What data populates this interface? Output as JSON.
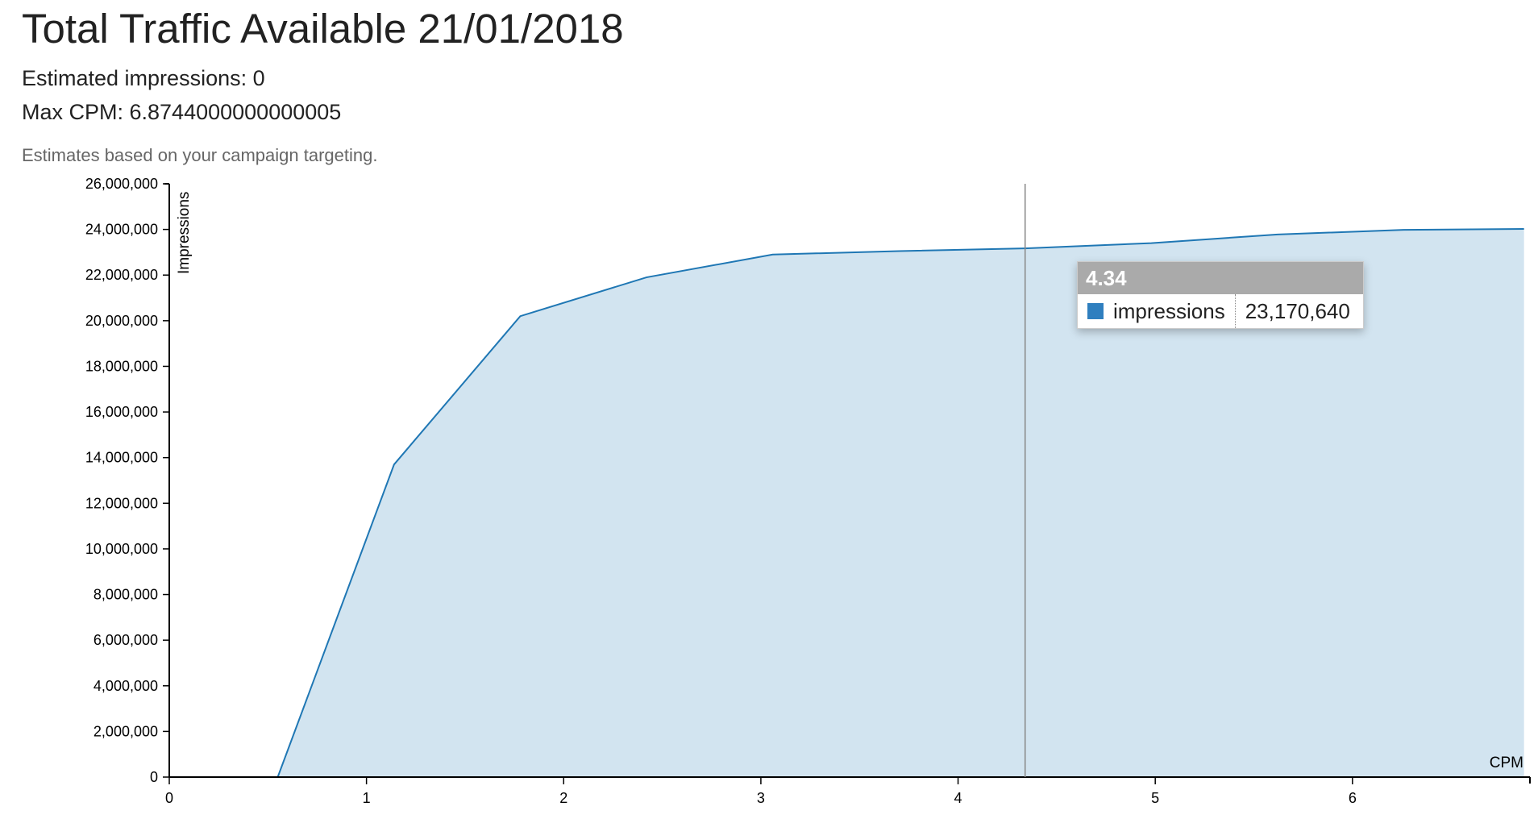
{
  "header": {
    "title": "Total Traffic Available 21/01/2018",
    "estimated_impressions": "Estimated impressions: 0",
    "max_cpm": "Max CPM: 6.8744000000000005",
    "note": "Estimates based on your campaign targeting."
  },
  "tooltip": {
    "x_value": "4.34",
    "series_name": "impressions",
    "y_value": "23,170,640"
  },
  "colors": {
    "line": "#1f77b4",
    "area": "#d2e4f0",
    "swatch": "#2f7fbf",
    "tooltip_header": "#aaaaaa"
  },
  "chart_data": {
    "type": "area",
    "xlabel": "CPM",
    "ylabel": "Impressions",
    "xlim": [
      0,
      6.9
    ],
    "ylim": [
      0,
      26000000
    ],
    "xticks": [
      0,
      1,
      2,
      3,
      4,
      5,
      6
    ],
    "yticks": [
      0,
      2000000,
      4000000,
      6000000,
      8000000,
      10000000,
      12000000,
      14000000,
      16000000,
      18000000,
      20000000,
      22000000,
      24000000,
      26000000
    ],
    "ytick_labels": [
      "0",
      "2,000,000",
      "4,000,000",
      "6,000,000",
      "8,000,000",
      "10,000,000",
      "12,000,000",
      "14,000,000",
      "16,000,000",
      "18,000,000",
      "20,000,000",
      "22,000,000",
      "24,000,000",
      "26,000,000"
    ],
    "hover_x": 4.34,
    "series": [
      {
        "name": "impressions",
        "x": [
          0,
          0.55,
          1.14,
          1.78,
          2.42,
          3.06,
          3.7,
          4.34,
          4.98,
          5.62,
          6.26,
          6.87
        ],
        "values": [
          0,
          0,
          13700000,
          20200000,
          21900000,
          22900000,
          23050000,
          23170640,
          23400000,
          23780000,
          23980000,
          24020000
        ]
      }
    ],
    "grid": false,
    "legend": "none"
  }
}
